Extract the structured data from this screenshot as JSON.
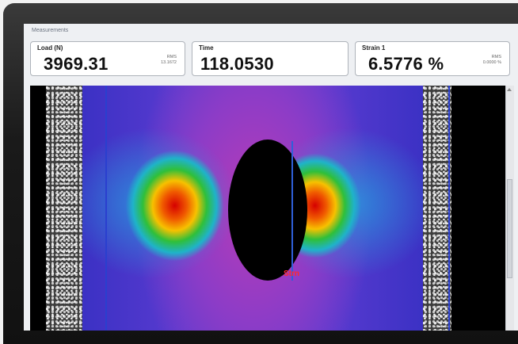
{
  "panel": {
    "title": "Measurements"
  },
  "measurements": [
    {
      "label": "Load (N)",
      "value": "3969.31",
      "rms_label": "RMS",
      "rms_value": "13.1672"
    },
    {
      "label": "Time",
      "value": "118.0530"
    },
    {
      "label": "Strain 1",
      "value": "6.5776 %",
      "rms_label": "RMS",
      "rms_value": "0.0000 %"
    }
  ],
  "image": {
    "overlay_label": "Strn"
  },
  "colors": {
    "strain_high": "#d60000",
    "strain_mid": "#f7c100",
    "strain_low": "#1fb3c9",
    "background_field": "#5a3bd0",
    "overlay_label": "#ff2a2a",
    "center_line": "#2f5fd9"
  }
}
